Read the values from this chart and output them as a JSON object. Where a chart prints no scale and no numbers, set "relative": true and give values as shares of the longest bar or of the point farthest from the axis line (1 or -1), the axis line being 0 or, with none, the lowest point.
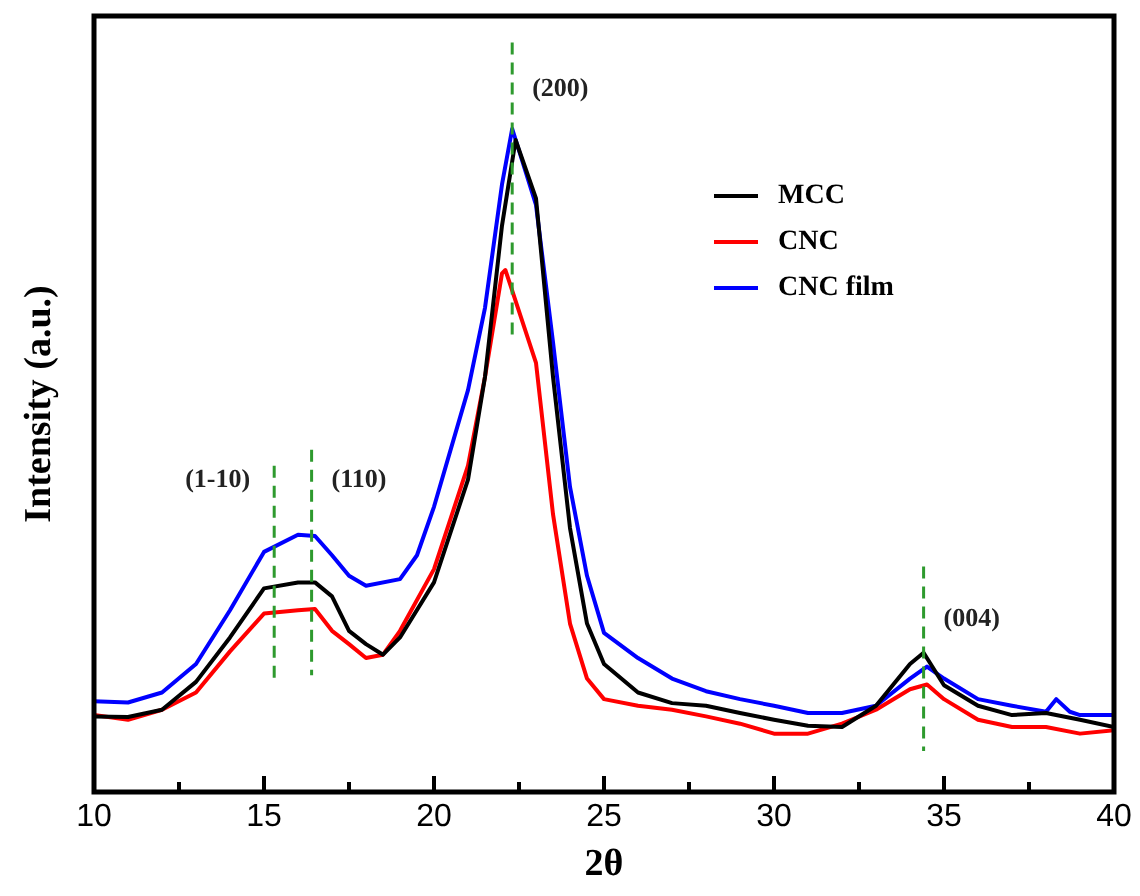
{
  "chart_data": {
    "type": "line",
    "relative": true,
    "xlabel": "2θ",
    "ylabel": "Intensity (a.u.)",
    "xlim": [
      10,
      40
    ],
    "xticks": [
      10,
      {
        "value": 12.5,
        "label": null
      },
      15,
      {
        "value": 17.5,
        "label": null
      },
      20,
      {
        "value": 22.5,
        "label": null
      },
      25,
      {
        "value": 27.5,
        "label": null
      },
      30,
      {
        "value": 32.5,
        "label": null
      },
      35,
      {
        "value": 37.5,
        "label": null
      },
      40
    ],
    "legend": "top right",
    "line_style": "solid",
    "marker": "none",
    "series": [
      {
        "name": "MCC",
        "color": "#000000",
        "x": [
          10,
          11,
          12,
          13,
          14,
          15,
          16,
          16.5,
          17,
          17.5,
          18,
          18.5,
          19,
          20,
          21,
          21.5,
          22,
          22.4,
          23,
          23.5,
          24,
          24.5,
          25,
          26,
          27,
          28,
          29,
          30,
          31,
          32,
          33,
          34,
          34.4,
          35,
          36,
          37,
          38,
          39,
          40
        ],
        "values": [
          0.114,
          0.113,
          0.124,
          0.166,
          0.233,
          0.307,
          0.316,
          0.316,
          0.295,
          0.243,
          0.223,
          0.207,
          0.233,
          0.316,
          0.471,
          0.626,
          0.854,
          0.983,
          0.895,
          0.626,
          0.398,
          0.254,
          0.193,
          0.15,
          0.134,
          0.13,
          0.119,
          0.109,
          0.1,
          0.098,
          0.13,
          0.193,
          0.21,
          0.161,
          0.13,
          0.116,
          0.119,
          0.109,
          0.098
        ]
      },
      {
        "name": "CNC",
        "color": "#ff0000",
        "x": [
          10,
          11,
          12,
          13,
          14,
          15,
          16,
          16.5,
          17,
          17.5,
          18,
          18.5,
          19,
          20,
          21,
          21.5,
          22,
          22.1,
          23,
          23.5,
          24,
          24.5,
          25,
          26,
          27,
          28,
          29,
          30,
          31,
          32,
          33,
          34,
          34.5,
          35,
          36,
          37,
          38,
          39,
          40
        ],
        "values": [
          0.116,
          0.109,
          0.124,
          0.15,
          0.212,
          0.269,
          0.274,
          0.276,
          0.243,
          0.223,
          0.202,
          0.207,
          0.243,
          0.336,
          0.492,
          0.626,
          0.782,
          0.787,
          0.647,
          0.419,
          0.254,
          0.171,
          0.14,
          0.13,
          0.124,
          0.114,
          0.103,
          0.088,
          0.088,
          0.103,
          0.124,
          0.155,
          0.162,
          0.14,
          0.109,
          0.098,
          0.098,
          0.088,
          0.093
        ]
      },
      {
        "name": "CNC film",
        "color": "#0000ff",
        "x": [
          10,
          11,
          12,
          13,
          14,
          15,
          16,
          16.5,
          17,
          17.5,
          18,
          19,
          19.5,
          20,
          21,
          21.5,
          22,
          22.3,
          23,
          23.5,
          24,
          24.5,
          25,
          26,
          27,
          28,
          29,
          30,
          31,
          32,
          33,
          34,
          34.5,
          35,
          36,
          37,
          38,
          38.3,
          38.7,
          39,
          40
        ],
        "values": [
          0.137,
          0.135,
          0.15,
          0.193,
          0.274,
          0.362,
          0.388,
          0.386,
          0.357,
          0.326,
          0.311,
          0.321,
          0.357,
          0.43,
          0.606,
          0.73,
          0.916,
          1,
          0.885,
          0.678,
          0.46,
          0.326,
          0.24,
          0.202,
          0.171,
          0.152,
          0.14,
          0.13,
          0.119,
          0.119,
          0.13,
          0.171,
          0.189,
          0.171,
          0.14,
          0.13,
          0.121,
          0.14,
          0.121,
          0.116,
          0.116
        ]
      }
    ],
    "ref_lines": [
      {
        "axis": "x",
        "value": 15.3,
        "color": "#2e9a2e",
        "line_style": "dashed"
      },
      {
        "axis": "x",
        "value": 16.4,
        "color": "#2e9a2e",
        "line_style": "dashed"
      },
      {
        "axis": "x",
        "value": 22.3,
        "color": "#2e9a2e",
        "line_style": "dashed"
      },
      {
        "axis": "x",
        "value": 34.4,
        "color": "#2e9a2e",
        "line_style": "dashed"
      }
    ],
    "annotations": [
      {
        "text": "(1-10)",
        "x": 15.3,
        "y": 0.47
      },
      {
        "text": "(110)",
        "x": 16.4,
        "y": 0.47
      },
      {
        "text": "(200)",
        "x": 22.3,
        "y": 1.06
      },
      {
        "text": "(004)",
        "x": 34.4,
        "y": 0.26
      }
    ]
  }
}
